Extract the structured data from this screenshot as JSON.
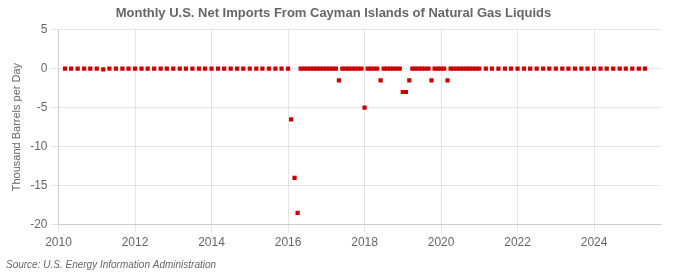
{
  "chart_data": {
    "type": "scatter",
    "title": "Monthly U.S. Net Imports From Cayman Islands of Natural Gas Liquids",
    "ylabel": "Thousand Barrels per Day",
    "annotation": "Source: U.S. Energy Information Administration",
    "color": "#cc0000",
    "marker": "square",
    "grid": true,
    "xlim": [
      2010,
      2025.75
    ],
    "ylim": [
      -20,
      5
    ],
    "xticks": [
      2010,
      2012,
      2014,
      2016,
      2018,
      2020,
      2022,
      2024
    ],
    "yticks": [
      -20,
      -15,
      -10,
      -5,
      0,
      5
    ],
    "x": [
      2010.17,
      2010.33,
      2010.5,
      2010.67,
      2010.83,
      2011.0,
      2011.17,
      2011.33,
      2011.5,
      2011.67,
      2011.83,
      2012.0,
      2012.17,
      2012.33,
      2012.5,
      2012.67,
      2012.83,
      2013.0,
      2013.17,
      2013.33,
      2013.5,
      2013.67,
      2013.83,
      2014.0,
      2014.17,
      2014.33,
      2014.5,
      2014.67,
      2014.83,
      2015.0,
      2015.17,
      2015.33,
      2015.5,
      2015.67,
      2015.83,
      2016.0,
      2016.08,
      2016.17,
      2016.25,
      2016.33,
      2016.42,
      2016.5,
      2016.58,
      2016.67,
      2016.75,
      2016.83,
      2016.92,
      2017.0,
      2017.08,
      2017.17,
      2017.25,
      2017.33,
      2017.42,
      2017.5,
      2017.58,
      2017.67,
      2017.75,
      2017.83,
      2017.92,
      2018.0,
      2018.08,
      2018.17,
      2018.25,
      2018.33,
      2018.42,
      2018.5,
      2018.58,
      2018.67,
      2018.75,
      2018.83,
      2018.92,
      2019.0,
      2019.08,
      2019.17,
      2019.25,
      2019.33,
      2019.42,
      2019.5,
      2019.58,
      2019.67,
      2019.75,
      2019.83,
      2019.92,
      2020.0,
      2020.08,
      2020.17,
      2020.25,
      2020.33,
      2020.42,
      2020.5,
      2020.58,
      2020.67,
      2020.75,
      2020.83,
      2020.92,
      2021.0,
      2021.17,
      2021.33,
      2021.5,
      2021.67,
      2021.83,
      2022.0,
      2022.17,
      2022.33,
      2022.5,
      2022.67,
      2022.83,
      2023.0,
      2023.17,
      2023.33,
      2023.5,
      2023.67,
      2023.83,
      2024.0,
      2024.17,
      2024.33,
      2024.5,
      2024.67,
      2024.83,
      2025.0,
      2025.17,
      2025.33
    ],
    "values": [
      0,
      0,
      0,
      0,
      0,
      0,
      -0.1,
      0,
      0,
      0,
      0,
      0,
      0,
      0,
      0,
      0,
      0,
      0,
      0,
      0,
      0,
      0,
      0,
      0,
      0,
      0,
      0,
      0,
      0,
      0,
      0,
      0,
      0,
      0,
      0,
      0,
      -6.5,
      -14.0,
      -18.5,
      0,
      0,
      0,
      0,
      0,
      0,
      0,
      0,
      0,
      0,
      0,
      0,
      -1.5,
      0,
      0,
      0,
      0,
      0,
      0,
      0,
      -5.0,
      0,
      0,
      0,
      0,
      -1.5,
      0,
      0,
      0,
      0,
      0,
      0,
      -3.0,
      -3.0,
      -1.5,
      0,
      0,
      0,
      0,
      0,
      0,
      -1.5,
      0,
      0,
      0,
      0,
      -1.5,
      0,
      0,
      0,
      0,
      0,
      0,
      0,
      0,
      0,
      0,
      0,
      0,
      0,
      0,
      0,
      0,
      0,
      0,
      0,
      0,
      0,
      0,
      0,
      0,
      0,
      0,
      0,
      0,
      0,
      0,
      0,
      0,
      0,
      0,
      0,
      0
    ]
  }
}
